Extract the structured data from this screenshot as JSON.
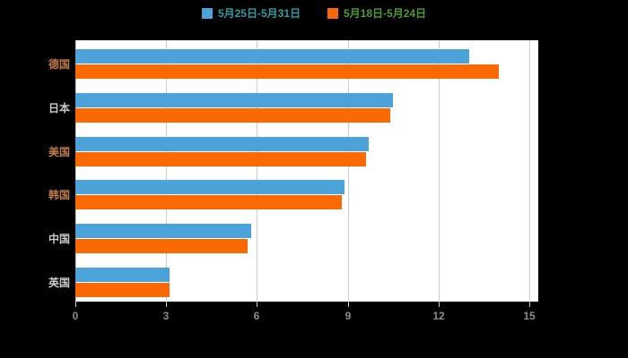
{
  "page": {
    "background": "#000000"
  },
  "legend": {
    "items": [
      {
        "label": "5月25日-5月31日",
        "swatch_color": "#4BA3D9",
        "text_color": "#2E9E9E"
      },
      {
        "label": "5月18日-5月24日",
        "swatch_color": "#FB6A02",
        "text_color": "#4E9E33"
      }
    ]
  },
  "chart_data": {
    "type": "bar",
    "orientation": "horizontal",
    "title": "",
    "xlabel": "",
    "ylabel": "",
    "categories": [
      "德国",
      "日本",
      "美国",
      "韩国",
      "中国",
      "英国"
    ],
    "category_label_colors": [
      "#BE7A4A",
      "#C9C9C9",
      "#BE7A4A",
      "#BE7A4A",
      "#C9C9C9",
      "#C9C9C9"
    ],
    "series": [
      {
        "name": "5月25日-5月31日",
        "color": "#4BA3D9",
        "values": [
          13.0,
          10.5,
          9.7,
          8.9,
          5.8,
          3.1
        ]
      },
      {
        "name": "5月18日-5月24日",
        "color": "#FB6A02",
        "values": [
          14.0,
          10.4,
          9.6,
          8.8,
          5.7,
          3.1
        ]
      }
    ],
    "x_ticks": [
      0,
      3,
      6,
      9,
      12,
      15
    ],
    "xlim": [
      0,
      15
    ],
    "grid": true,
    "gridline_color": "#CCCCCC",
    "plot_background": "#FFFFFF",
    "page_background": "#000000",
    "tick_label_color": "#8C8C8C",
    "legend_position": "top"
  }
}
